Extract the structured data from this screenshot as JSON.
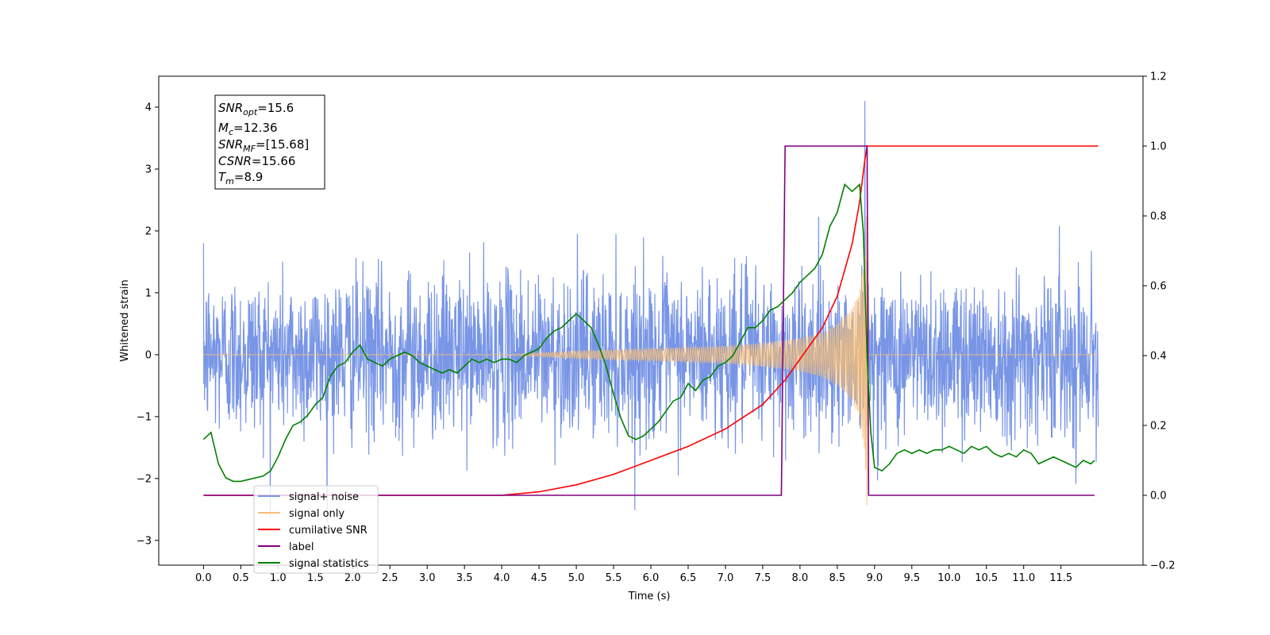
{
  "chart_data": {
    "type": "line",
    "xlabel": "Time (s)",
    "ylabel": "Whitened strain",
    "xlim": [
      -0.6,
      12.6
    ],
    "ylim": [
      -3.4,
      4.5
    ],
    "ylim_right": [
      -0.2,
      1.2
    ],
    "x_ticks": [
      "0.0",
      "0.5",
      "1.0",
      "1.5",
      "2.0",
      "2.5",
      "3.0",
      "3.5",
      "4.0",
      "4.5",
      "5.0",
      "5.5",
      "6.0",
      "6.5",
      "7.0",
      "7.5",
      "8.0",
      "8.5",
      "9.0",
      "9.5",
      "10.0",
      "10.5",
      "11.0",
      "11.5"
    ],
    "y_ticks": [
      "4",
      "3",
      "2",
      "1",
      "0",
      "−1",
      "−2",
      "−3"
    ],
    "y_ticks_right": [
      "1.2",
      "1.0",
      "0.8",
      "0.6",
      "0.4",
      "0.2",
      "0.0",
      "−0.2"
    ],
    "grid": false,
    "legend_position": "lower-left",
    "info_box": [
      {
        "var": "SNR",
        "sub": "opt",
        "value": "=15.6"
      },
      {
        "var": "M",
        "sub": "c",
        "value": "=12.36"
      },
      {
        "var": "SNR",
        "sub": "MF",
        "value": "=[15.68]"
      },
      {
        "var": "CSNR",
        "sub": "",
        "value": "=15.66"
      },
      {
        "var": "T",
        "sub": "m",
        "value": "=8.9"
      }
    ],
    "series": [
      {
        "name": "signal+ noise",
        "color": "#7895e6",
        "axis": "left",
        "duration": [
          0.0,
          12.0
        ],
        "noise_std": 0.65,
        "max_value": 4.1,
        "max_at": 8.87
      },
      {
        "name": "signal only",
        "color": "#f5be78",
        "axis": "left",
        "merger_time": 8.9,
        "envelope": {
          "t": [
            4.0,
            5.0,
            6.0,
            7.0,
            7.5,
            8.0,
            8.3,
            8.5,
            8.7,
            8.8,
            8.87,
            8.9
          ],
          "amp": [
            0.0,
            0.06,
            0.1,
            0.14,
            0.19,
            0.27,
            0.36,
            0.5,
            0.75,
            1.05,
            1.6,
            2.8
          ]
        }
      },
      {
        "name": "cumilative SNR",
        "color": "#ff0000",
        "axis": "right",
        "x": [
          0.0,
          4.0,
          4.5,
          5.0,
          5.5,
          6.0,
          6.5,
          7.0,
          7.5,
          7.8,
          8.0,
          8.3,
          8.5,
          8.7,
          8.8,
          8.87,
          8.9,
          12.0
        ],
        "y": [
          0.0,
          0.0,
          0.01,
          0.03,
          0.06,
          0.1,
          0.14,
          0.19,
          0.26,
          0.33,
          0.39,
          0.48,
          0.57,
          0.72,
          0.84,
          0.96,
          1.0,
          1.0
        ]
      },
      {
        "name": "label",
        "color": "#800080",
        "axis": "right",
        "x": [
          0.0,
          7.75,
          7.8,
          8.9,
          8.92,
          11.95
        ],
        "y": [
          0.0,
          0.0,
          1.0,
          1.0,
          0.0,
          0.0
        ]
      },
      {
        "name": "signal statistics",
        "color": "#008000",
        "axis": "right",
        "x": [
          0.0,
          0.05,
          0.1,
          0.2,
          0.3,
          0.4,
          0.5,
          0.6,
          0.7,
          0.8,
          0.9,
          1.0,
          1.1,
          1.2,
          1.3,
          1.4,
          1.5,
          1.6,
          1.7,
          1.8,
          1.9,
          2.0,
          2.1,
          2.2,
          2.3,
          2.4,
          2.5,
          2.6,
          2.7,
          2.8,
          2.9,
          3.0,
          3.1,
          3.2,
          3.3,
          3.4,
          3.5,
          3.6,
          3.7,
          3.8,
          3.9,
          4.0,
          4.1,
          4.2,
          4.3,
          4.4,
          4.5,
          4.6,
          4.7,
          4.8,
          4.9,
          5.0,
          5.1,
          5.2,
          5.3,
          5.4,
          5.5,
          5.6,
          5.7,
          5.8,
          5.9,
          6.0,
          6.1,
          6.2,
          6.3,
          6.4,
          6.5,
          6.6,
          6.7,
          6.8,
          6.9,
          7.0,
          7.1,
          7.2,
          7.3,
          7.4,
          7.5,
          7.6,
          7.7,
          7.8,
          7.9,
          8.0,
          8.1,
          8.2,
          8.3,
          8.4,
          8.5,
          8.6,
          8.7,
          8.8,
          8.85,
          8.9,
          8.95,
          9.0,
          9.1,
          9.2,
          9.3,
          9.4,
          9.5,
          9.6,
          9.7,
          9.8,
          9.9,
          10.0,
          10.1,
          10.2,
          10.3,
          10.4,
          10.5,
          10.6,
          10.7,
          10.8,
          10.9,
          11.0,
          11.1,
          11.2,
          11.3,
          11.4,
          11.5,
          11.6,
          11.7,
          11.8,
          11.9,
          11.95
        ],
        "y": [
          0.16,
          0.17,
          0.18,
          0.09,
          0.05,
          0.04,
          0.04,
          0.045,
          0.05,
          0.055,
          0.07,
          0.11,
          0.16,
          0.2,
          0.21,
          0.23,
          0.26,
          0.28,
          0.34,
          0.37,
          0.38,
          0.41,
          0.43,
          0.39,
          0.38,
          0.37,
          0.39,
          0.4,
          0.41,
          0.4,
          0.38,
          0.37,
          0.36,
          0.35,
          0.36,
          0.35,
          0.37,
          0.39,
          0.38,
          0.39,
          0.38,
          0.39,
          0.39,
          0.38,
          0.4,
          0.41,
          0.42,
          0.45,
          0.47,
          0.48,
          0.5,
          0.52,
          0.5,
          0.48,
          0.43,
          0.37,
          0.29,
          0.22,
          0.17,
          0.16,
          0.17,
          0.19,
          0.21,
          0.24,
          0.27,
          0.28,
          0.32,
          0.3,
          0.33,
          0.34,
          0.37,
          0.38,
          0.4,
          0.44,
          0.48,
          0.48,
          0.5,
          0.53,
          0.54,
          0.56,
          0.58,
          0.61,
          0.63,
          0.65,
          0.69,
          0.77,
          0.81,
          0.89,
          0.87,
          0.89,
          0.75,
          0.4,
          0.18,
          0.08,
          0.07,
          0.09,
          0.12,
          0.13,
          0.12,
          0.13,
          0.12,
          0.13,
          0.13,
          0.14,
          0.13,
          0.12,
          0.14,
          0.13,
          0.14,
          0.12,
          0.11,
          0.12,
          0.11,
          0.13,
          0.12,
          0.09,
          0.1,
          0.11,
          0.1,
          0.09,
          0.08,
          0.1,
          0.09,
          0.1
        ]
      }
    ]
  }
}
